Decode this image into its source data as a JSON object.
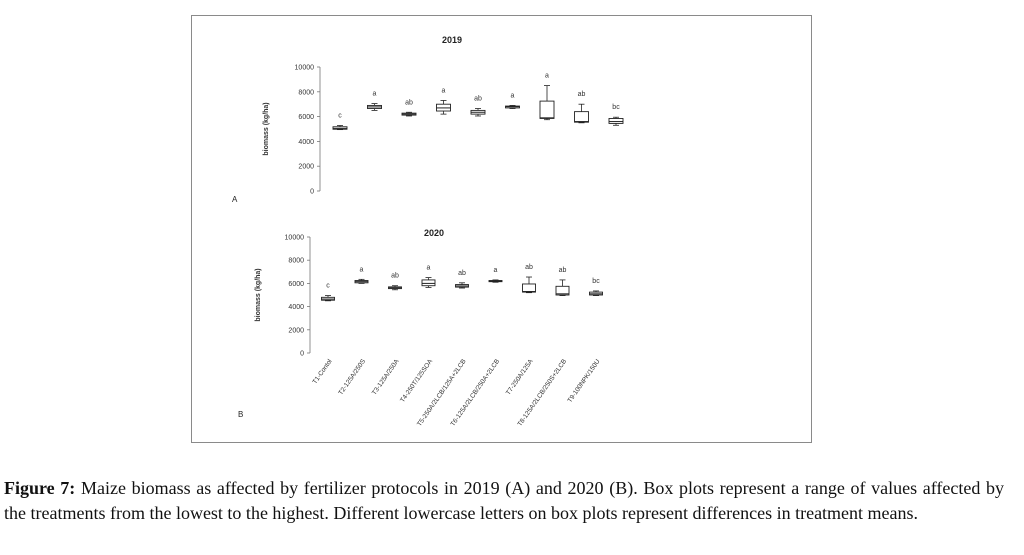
{
  "caption": {
    "label": "Figure 7:",
    "text": "Maize biomass as affected by fertilizer protocols in 2019 (A) and 2020 (B). Box plots represent a range of values affected by the treatments from the lowest to the highest. Different lowercase letters on box plots represent differences in treatment means."
  },
  "chart_data": [
    {
      "type": "box",
      "panel": "A",
      "title": "2019",
      "ylabel": "biomass (kg/ha)",
      "ylim": [
        0,
        10000
      ],
      "yticks": [
        "0",
        "2000",
        "4000",
        "6000",
        "8000",
        "10000"
      ],
      "categories": [
        "T1-Contol",
        "T2-125A/250S",
        "T3-125A/250A",
        "T4-250T/125SOA",
        "T5-250A/2LCB/125A+2LCB",
        "T6-125A/2LCB/250A+2LCB",
        "T7-250A/125A",
        "T8-125A/2LCB/250S+2LCB",
        "T9-100NPK/150U"
      ],
      "boxes": [
        {
          "min": 4950,
          "q1": 4980,
          "median": 5050,
          "q3": 5180,
          "max": 5280,
          "letter": "c"
        },
        {
          "min": 6500,
          "q1": 6650,
          "median": 6780,
          "q3": 6900,
          "max": 7050,
          "letter": "a"
        },
        {
          "min": 6050,
          "q1": 6120,
          "median": 6200,
          "q3": 6280,
          "max": 6350,
          "letter": "ab"
        },
        {
          "min": 6200,
          "q1": 6450,
          "median": 6700,
          "q3": 7000,
          "max": 7300,
          "letter": "a"
        },
        {
          "min": 6050,
          "q1": 6200,
          "median": 6350,
          "q3": 6500,
          "max": 6650,
          "letter": "ab"
        },
        {
          "min": 6650,
          "q1": 6700,
          "median": 6800,
          "q3": 6850,
          "max": 6900,
          "letter": "a"
        },
        {
          "min": 5750,
          "q1": 5850,
          "median": 5900,
          "q3": 7250,
          "max": 8500,
          "letter": "a"
        },
        {
          "min": 5500,
          "q1": 5550,
          "median": 5600,
          "q3": 6400,
          "max": 7000,
          "letter": "ab"
        },
        {
          "min": 5300,
          "q1": 5450,
          "median": 5600,
          "q3": 5850,
          "max": 5950,
          "letter": "bc"
        }
      ]
    },
    {
      "type": "box",
      "panel": "B",
      "title": "2020",
      "ylabel": "biomass (kg/ha)",
      "ylim": [
        0,
        10000
      ],
      "yticks": [
        "0",
        "2000",
        "4000",
        "6000",
        "8000",
        "10000"
      ],
      "categories": [
        "T1-Contol",
        "T2-125A/250S",
        "T3-125A/250A",
        "T4-250T/125SOA",
        "T5-250A/2LCB/125A+2LCB",
        "T6-125A/2LCB/250A+2LCB",
        "T7-250A/125A",
        "T8-125A/2LCB/250S+2LCB",
        "T9-100NPK/150U"
      ],
      "boxes": [
        {
          "min": 4500,
          "q1": 4550,
          "median": 4650,
          "q3": 4800,
          "max": 4950,
          "letter": "c"
        },
        {
          "min": 6000,
          "q1": 6050,
          "median": 6150,
          "q3": 6250,
          "max": 6350,
          "letter": "a"
        },
        {
          "min": 5450,
          "q1": 5550,
          "median": 5620,
          "q3": 5700,
          "max": 5800,
          "letter": "ab"
        },
        {
          "min": 5650,
          "q1": 5800,
          "median": 6000,
          "q3": 6300,
          "max": 6500,
          "letter": "a"
        },
        {
          "min": 5600,
          "q1": 5680,
          "median": 5780,
          "q3": 5900,
          "max": 6050,
          "letter": "ab"
        },
        {
          "min": 6100,
          "q1": 6150,
          "median": 6200,
          "q3": 6250,
          "max": 6300,
          "letter": "a"
        },
        {
          "min": 5200,
          "q1": 5250,
          "median": 5300,
          "q3": 5950,
          "max": 6550,
          "letter": "ab"
        },
        {
          "min": 4950,
          "q1": 5000,
          "median": 5100,
          "q3": 5750,
          "max": 6300,
          "letter": "ab"
        },
        {
          "min": 4950,
          "q1": 5000,
          "median": 5100,
          "q3": 5250,
          "max": 5350,
          "letter": "bc"
        }
      ]
    }
  ]
}
